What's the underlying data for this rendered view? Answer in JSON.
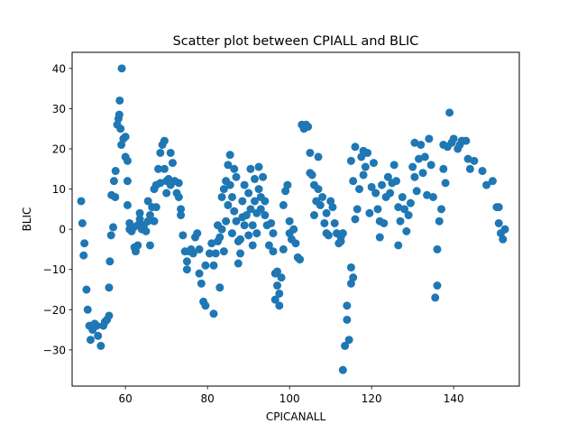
{
  "chart_data": {
    "type": "scatter",
    "title": "Scatter plot between CPIALL and BLIC",
    "xlabel": "CPICANALL",
    "ylabel": "BLIC",
    "xlim": [
      47,
      156
    ],
    "ylim": [
      -39,
      44
    ],
    "xticks": [
      60,
      80,
      100,
      120,
      140
    ],
    "yticks": [
      -30,
      -20,
      -10,
      0,
      10,
      20,
      30,
      40
    ],
    "grid": false,
    "legend": "none",
    "marker_color": "#1f77b4",
    "points": [
      [
        49.2,
        7.0
      ],
      [
        49.5,
        1.5
      ],
      [
        49.8,
        -6.5
      ],
      [
        50.0,
        -3.5
      ],
      [
        50.5,
        -15.0
      ],
      [
        50.8,
        -20.0
      ],
      [
        51.2,
        -24.0
      ],
      [
        51.5,
        -27.5
      ],
      [
        52.0,
        -25.0
      ],
      [
        52.5,
        -23.5
      ],
      [
        53.0,
        -24.0
      ],
      [
        53.3,
        -26.5
      ],
      [
        54.0,
        -29.0
      ],
      [
        54.6,
        -24.0
      ],
      [
        55.0,
        -23.0
      ],
      [
        55.5,
        -22.5
      ],
      [
        56.0,
        -21.5
      ],
      [
        56.0,
        -14.5
      ],
      [
        56.2,
        -8.0
      ],
      [
        56.5,
        -1.5
      ],
      [
        56.6,
        8.5
      ],
      [
        57.0,
        0.5
      ],
      [
        57.2,
        12.0
      ],
      [
        57.5,
        8.0
      ],
      [
        57.6,
        14.5
      ],
      [
        58.0,
        26.0
      ],
      [
        58.3,
        27.5
      ],
      [
        58.5,
        28.5
      ],
      [
        58.6,
        32.0
      ],
      [
        58.8,
        25.0
      ],
      [
        59.0,
        21.0
      ],
      [
        59.1,
        40.0
      ],
      [
        59.5,
        22.5
      ],
      [
        60.0,
        23.0
      ],
      [
        60.0,
        18.0
      ],
      [
        60.5,
        17.0
      ],
      [
        60.5,
        12.0
      ],
      [
        60.5,
        6.0
      ],
      [
        61.0,
        1.5
      ],
      [
        61.0,
        0.0
      ],
      [
        61.5,
        -0.5
      ],
      [
        62.0,
        0.5
      ],
      [
        62.2,
        -4.5
      ],
      [
        62.5,
        -5.5
      ],
      [
        63.0,
        -4.0
      ],
      [
        63.0,
        1.0
      ],
      [
        63.5,
        2.5
      ],
      [
        63.5,
        4.0
      ],
      [
        64.0,
        0.0
      ],
      [
        64.5,
        1.0
      ],
      [
        65.0,
        -0.5
      ],
      [
        65.5,
        2.0
      ],
      [
        65.5,
        7.0
      ],
      [
        66.0,
        -4.0
      ],
      [
        66.0,
        3.5
      ],
      [
        66.5,
        5.5
      ],
      [
        67.0,
        2.0
      ],
      [
        67.0,
        10.0
      ],
      [
        67.5,
        5.5
      ],
      [
        67.5,
        11.0
      ],
      [
        68.0,
        15.0
      ],
      [
        68.5,
        11.5
      ],
      [
        68.5,
        19.0
      ],
      [
        69.0,
        21.0
      ],
      [
        69.5,
        22.0
      ],
      [
        69.5,
        15.0
      ],
      [
        70.0,
        12.0
      ],
      [
        70.0,
        9.0
      ],
      [
        70.5,
        12.5
      ],
      [
        71.0,
        19.0
      ],
      [
        71.0,
        11.0
      ],
      [
        71.5,
        16.5
      ],
      [
        72.0,
        12.0
      ],
      [
        72.5,
        9.0
      ],
      [
        73.0,
        11.5
      ],
      [
        73.0,
        8.0
      ],
      [
        73.5,
        5.0
      ],
      [
        73.5,
        3.5
      ],
      [
        74.0,
        -1.5
      ],
      [
        74.5,
        -5.5
      ],
      [
        75.0,
        -8.0
      ],
      [
        75.0,
        -10.0
      ],
      [
        75.5,
        -5.5
      ],
      [
        76.0,
        -5.0
      ],
      [
        76.5,
        -6.0
      ],
      [
        77.0,
        -2.0
      ],
      [
        77.5,
        -1.0
      ],
      [
        78.0,
        -5.0
      ],
      [
        78.0,
        -11.0
      ],
      [
        78.5,
        -13.5
      ],
      [
        79.0,
        -18.0
      ],
      [
        79.5,
        -19.0
      ],
      [
        79.5,
        -9.0
      ],
      [
        80.5,
        -6.0
      ],
      [
        81.0,
        -3.5
      ],
      [
        81.5,
        -21.0
      ],
      [
        81.5,
        -9.0
      ],
      [
        82.0,
        -6.0
      ],
      [
        82.5,
        -3.0
      ],
      [
        82.5,
        1.0
      ],
      [
        83.0,
        -2.0
      ],
      [
        83.0,
        -14.5
      ],
      [
        83.5,
        0.0
      ],
      [
        83.5,
        8.0
      ],
      [
        84.0,
        -5.5
      ],
      [
        84.0,
        10.0
      ],
      [
        84.5,
        12.0
      ],
      [
        84.5,
        2.0
      ],
      [
        85.0,
        6.0
      ],
      [
        85.0,
        16.0
      ],
      [
        85.5,
        18.5
      ],
      [
        85.5,
        11.0
      ],
      [
        86.0,
        -1.0
      ],
      [
        86.0,
        8.0
      ],
      [
        86.5,
        15.0
      ],
      [
        86.5,
        4.5
      ],
      [
        87.0,
        13.0
      ],
      [
        87.0,
        2.0
      ],
      [
        87.5,
        -3.0
      ],
      [
        87.5,
        -8.5
      ],
      [
        88.0,
        -6.0
      ],
      [
        88.0,
        -2.5
      ],
      [
        88.5,
        3.0
      ],
      [
        88.5,
        7.0
      ],
      [
        89.0,
        11.0
      ],
      [
        89.0,
        1.0
      ],
      [
        89.5,
        3.5
      ],
      [
        90.0,
        9.0
      ],
      [
        90.0,
        -1.5
      ],
      [
        90.5,
        15.0
      ],
      [
        90.5,
        5.0
      ],
      [
        91.0,
        -4.0
      ],
      [
        91.0,
        1.0
      ],
      [
        91.5,
        7.0
      ],
      [
        91.5,
        12.5
      ],
      [
        92.0,
        4.0
      ],
      [
        92.0,
        -1.0
      ],
      [
        92.5,
        15.5
      ],
      [
        92.5,
        10.0
      ],
      [
        93.0,
        5.0
      ],
      [
        93.0,
        8.0
      ],
      [
        93.5,
        13.0
      ],
      [
        94.0,
        3.5
      ],
      [
        94.0,
        7.0
      ],
      [
        94.5,
        1.0
      ],
      [
        95.0,
        -4.0
      ],
      [
        95.5,
        1.5
      ],
      [
        96.0,
        -1.0
      ],
      [
        96.0,
        -5.5
      ],
      [
        96.5,
        -17.5
      ],
      [
        96.5,
        -11.0
      ],
      [
        97.0,
        -10.5
      ],
      [
        97.0,
        -14.0
      ],
      [
        97.5,
        -16.0
      ],
      [
        97.5,
        -19.0
      ],
      [
        98.0,
        -12.0
      ],
      [
        98.5,
        -5.0
      ],
      [
        98.5,
        6.0
      ],
      [
        99.0,
        9.5
      ],
      [
        99.5,
        11.0
      ],
      [
        100.0,
        2.0
      ],
      [
        100.0,
        -1.0
      ],
      [
        100.5,
        -2.5
      ],
      [
        101.0,
        0.0
      ],
      [
        101.5,
        -3.5
      ],
      [
        102.0,
        -7.0
      ],
      [
        102.5,
        -7.5
      ],
      [
        103.0,
        26.0
      ],
      [
        103.5,
        25.0
      ],
      [
        104.0,
        26.0
      ],
      [
        104.5,
        25.5
      ],
      [
        105.0,
        19.0
      ],
      [
        105.0,
        14.0
      ],
      [
        105.5,
        13.5
      ],
      [
        106.0,
        11.0
      ],
      [
        106.0,
        3.5
      ],
      [
        106.5,
        7.0
      ],
      [
        107.0,
        10.0
      ],
      [
        107.0,
        18.0
      ],
      [
        107.5,
        6.0
      ],
      [
        108.0,
        8.0
      ],
      [
        108.5,
        1.5
      ],
      [
        109.0,
        -1.0
      ],
      [
        109.0,
        4.0
      ],
      [
        109.5,
        -1.5
      ],
      [
        110.0,
        7.0
      ],
      [
        110.5,
        5.5
      ],
      [
        111.0,
        1.5
      ],
      [
        111.5,
        -1.0
      ],
      [
        112.0,
        -3.5
      ],
      [
        112.5,
        -3.0
      ],
      [
        112.5,
        -2.0
      ],
      [
        113.0,
        -1.0
      ],
      [
        113.0,
        -35.0
      ],
      [
        113.5,
        -29.0
      ],
      [
        114.0,
        -19.0
      ],
      [
        114.0,
        -22.5
      ],
      [
        114.5,
        -27.5
      ],
      [
        115.0,
        -13.5
      ],
      [
        115.0,
        -9.5
      ],
      [
        115.5,
        -12.0
      ],
      [
        115.0,
        17.0
      ],
      [
        115.5,
        12.0
      ],
      [
        116.0,
        20.5
      ],
      [
        116.0,
        2.5
      ],
      [
        116.5,
        5.0
      ],
      [
        117.0,
        10.0
      ],
      [
        117.5,
        18.0
      ],
      [
        118.0,
        19.5
      ],
      [
        118.0,
        13.5
      ],
      [
        118.5,
        15.5
      ],
      [
        119.0,
        19.0
      ],
      [
        119.5,
        4.0
      ],
      [
        120.0,
        10.5
      ],
      [
        120.5,
        16.5
      ],
      [
        121.0,
        9.0
      ],
      [
        121.5,
        5.0
      ],
      [
        122.0,
        2.0
      ],
      [
        122.0,
        -2.0
      ],
      [
        122.5,
        11.0
      ],
      [
        123.0,
        1.5
      ],
      [
        123.5,
        8.0
      ],
      [
        124.0,
        13.0
      ],
      [
        124.5,
        9.0
      ],
      [
        125.0,
        11.5
      ],
      [
        125.5,
        16.0
      ],
      [
        126.0,
        12.0
      ],
      [
        126.5,
        5.5
      ],
      [
        126.5,
        -4.0
      ],
      [
        127.0,
        2.0
      ],
      [
        127.5,
        8.0
      ],
      [
        128.0,
        5.0
      ],
      [
        128.5,
        -0.5
      ],
      [
        129.0,
        3.5
      ],
      [
        129.5,
        6.5
      ],
      [
        130.0,
        15.5
      ],
      [
        130.5,
        21.5
      ],
      [
        130.5,
        13.0
      ],
      [
        131.0,
        9.5
      ],
      [
        131.5,
        17.5
      ],
      [
        132.0,
        21.0
      ],
      [
        132.5,
        14.0
      ],
      [
        133.0,
        18.0
      ],
      [
        133.5,
        8.5
      ],
      [
        134.0,
        22.5
      ],
      [
        134.5,
        16.0
      ],
      [
        135.0,
        8.0
      ],
      [
        135.5,
        -17.0
      ],
      [
        136.0,
        -14.0
      ],
      [
        136.0,
        -5.0
      ],
      [
        136.5,
        2.0
      ],
      [
        137.0,
        5.0
      ],
      [
        137.5,
        15.0
      ],
      [
        137.5,
        21.0
      ],
      [
        138.0,
        11.5
      ],
      [
        138.5,
        20.5
      ],
      [
        139.0,
        29.0
      ],
      [
        139.5,
        21.5
      ],
      [
        140.0,
        22.5
      ],
      [
        141.0,
        20.0
      ],
      [
        141.5,
        21.0
      ],
      [
        142.0,
        22.0
      ],
      [
        143.0,
        22.0
      ],
      [
        143.5,
        17.5
      ],
      [
        144.0,
        15.0
      ],
      [
        145.0,
        17.0
      ],
      [
        147.0,
        14.5
      ],
      [
        148.0,
        11.0
      ],
      [
        149.5,
        12.0
      ],
      [
        150.5,
        5.5
      ],
      [
        151.0,
        5.5
      ],
      [
        151.0,
        1.5
      ],
      [
        151.5,
        -1.0
      ],
      [
        152.0,
        -2.5
      ],
      [
        152.5,
        0.0
      ]
    ]
  }
}
